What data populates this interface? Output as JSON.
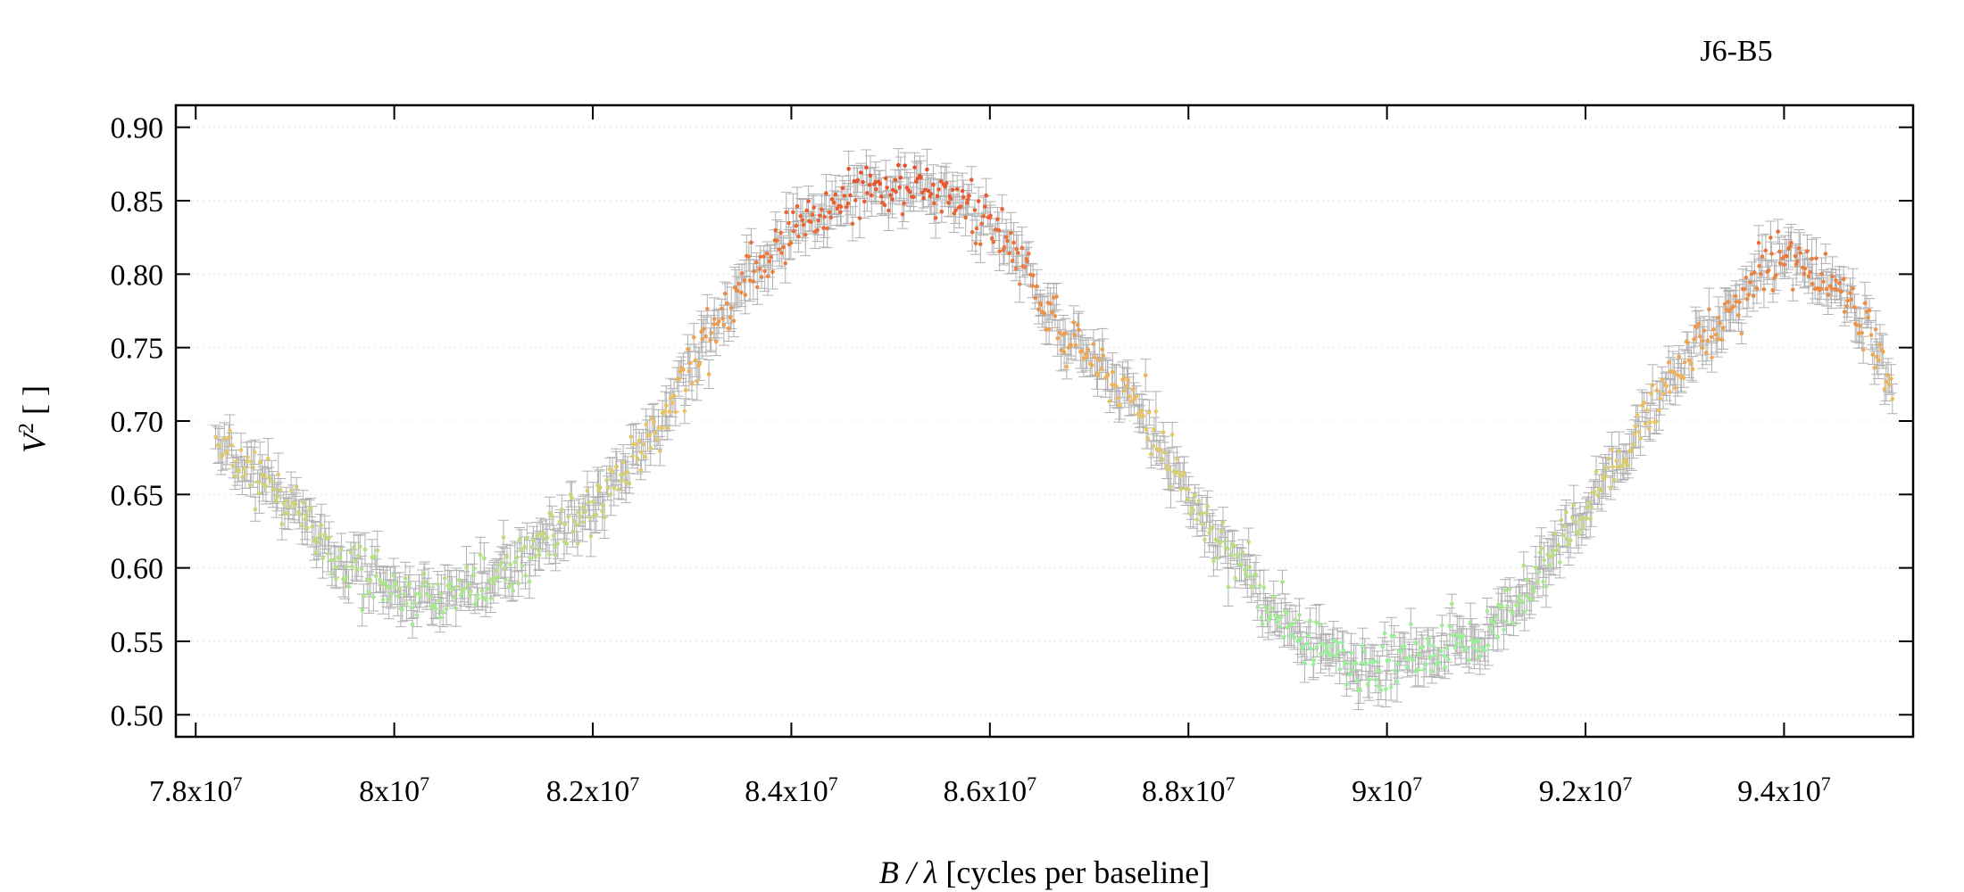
{
  "chart_data": {
    "type": "scatter",
    "title": "J6-B5",
    "xlabel": {
      "var": "B / λ",
      "unit": "[cycles per baseline]"
    },
    "ylabel": {
      "var": "V",
      "sup": "2",
      "unit": "[ ]"
    },
    "xlim": [
      77800000,
      95300000
    ],
    "ylim": [
      0.485,
      0.915
    ],
    "x_ticks": [
      {
        "value": 78000000,
        "mantissa": "7.8x10",
        "exp": "7"
      },
      {
        "value": 80000000,
        "mantissa": "8x10",
        "exp": "7"
      },
      {
        "value": 82000000,
        "mantissa": "8.2x10",
        "exp": "7"
      },
      {
        "value": 84000000,
        "mantissa": "8.4x10",
        "exp": "7"
      },
      {
        "value": 86000000,
        "mantissa": "8.6x10",
        "exp": "7"
      },
      {
        "value": 88000000,
        "mantissa": "8.8x10",
        "exp": "7"
      },
      {
        "value": 90000000,
        "mantissa": "9x10",
        "exp": "7"
      },
      {
        "value": 92000000,
        "mantissa": "9.2x10",
        "exp": "7"
      },
      {
        "value": 94000000,
        "mantissa": "9.4x10",
        "exp": "7"
      }
    ],
    "y_ticks": [
      {
        "value": 0.5,
        "label": "0.50"
      },
      {
        "value": 0.55,
        "label": "0.55"
      },
      {
        "value": 0.6,
        "label": "0.60"
      },
      {
        "value": 0.65,
        "label": "0.65"
      },
      {
        "value": 0.7,
        "label": "0.70"
      },
      {
        "value": 0.75,
        "label": "0.75"
      },
      {
        "value": 0.8,
        "label": "0.80"
      },
      {
        "value": 0.85,
        "label": "0.85"
      },
      {
        "value": 0.9,
        "label": "0.90"
      }
    ],
    "grid": {
      "horizontal": true,
      "vertical": false
    },
    "legend": "none",
    "error_bars": true,
    "colors": {
      "low": "#98f098",
      "mid": "#f0c060",
      "high": "#e8502a",
      "error_bar": "#b0b0b0",
      "grid": "#e6e6e6"
    },
    "trend": {
      "x": [
        78200000,
        78500000,
        79000000,
        79500000,
        80000000,
        80500000,
        81000000,
        81500000,
        82000000,
        82500000,
        83000000,
        83500000,
        84000000,
        84500000,
        85000000,
        85500000,
        86000000,
        86300000,
        86600000,
        87000000,
        87500000,
        88000000,
        88500000,
        89000000,
        89500000,
        90000000,
        90500000,
        91000000,
        91500000,
        92000000,
        92500000,
        93000000,
        93500000,
        94000000,
        94500000,
        94800000,
        95100000
      ],
      "y": [
        0.69,
        0.67,
        0.64,
        0.6,
        0.585,
        0.58,
        0.59,
        0.615,
        0.64,
        0.68,
        0.74,
        0.79,
        0.83,
        0.85,
        0.86,
        0.855,
        0.835,
        0.81,
        0.77,
        0.745,
        0.71,
        0.65,
        0.6,
        0.56,
        0.54,
        0.535,
        0.54,
        0.555,
        0.59,
        0.64,
        0.69,
        0.74,
        0.78,
        0.815,
        0.79,
        0.77,
        0.72
      ],
      "points_per_segment_approx": 1900,
      "scatter_sd": 0.009,
      "error_sd": 0.009
    }
  }
}
